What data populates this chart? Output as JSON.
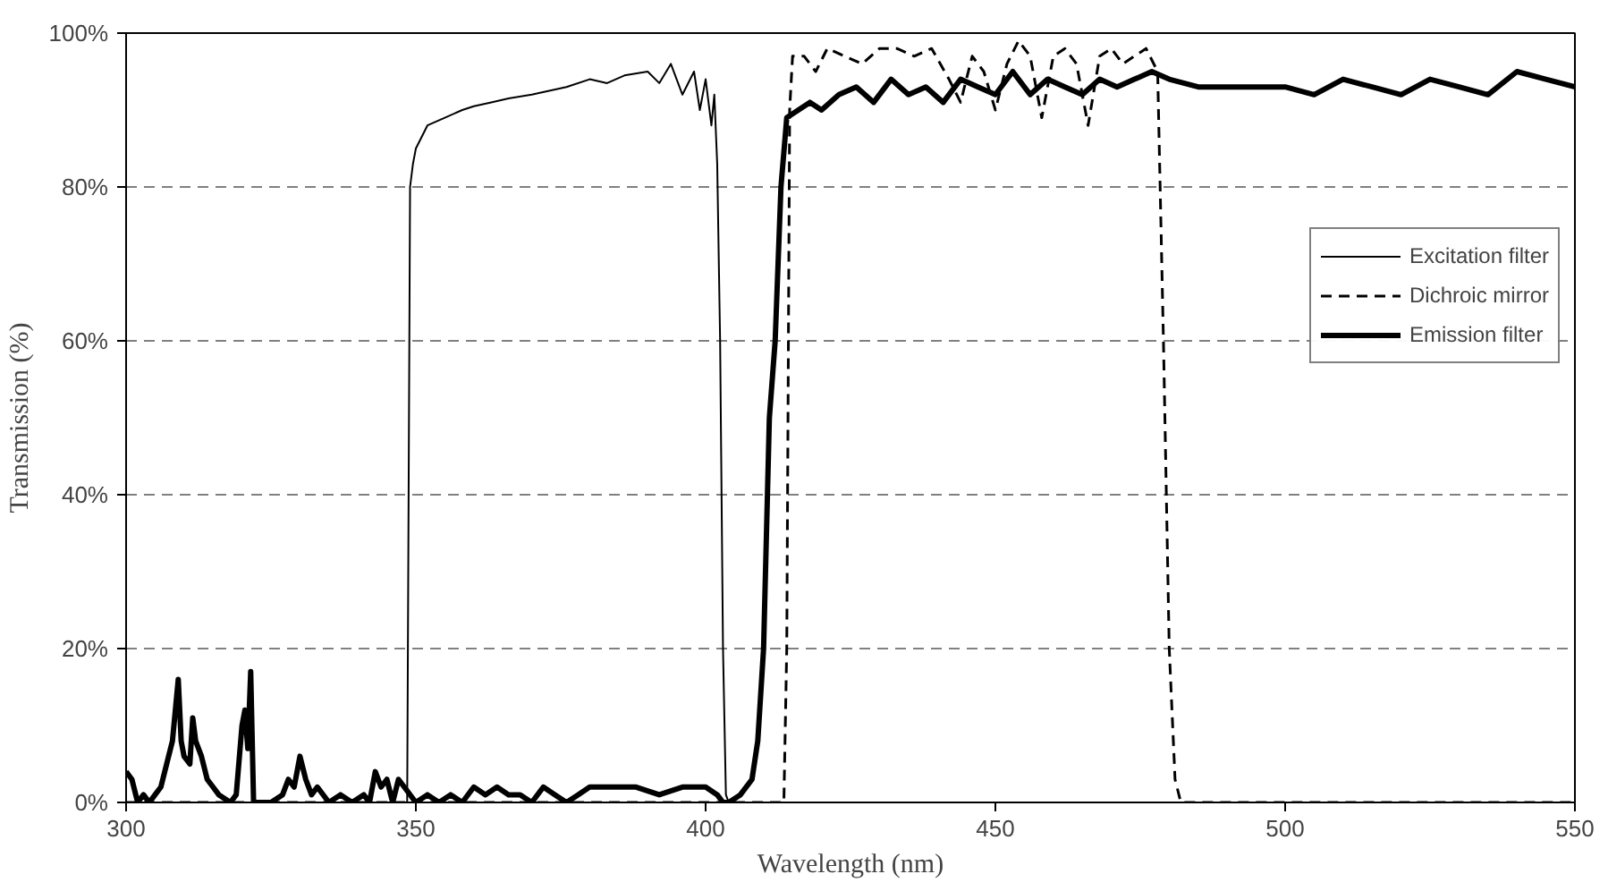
{
  "chart_data": {
    "type": "line",
    "xlabel": "Wavelength (nm)",
    "ylabel": "Transmission (%)",
    "xlim": [
      300,
      550
    ],
    "ylim": [
      0,
      100
    ],
    "xticks": [
      300,
      350,
      400,
      450,
      500,
      550
    ],
    "yticks": [
      {
        "value": 0,
        "label": "0%"
      },
      {
        "value": 20,
        "label": "20%"
      },
      {
        "value": 40,
        "label": "40%"
      },
      {
        "value": 60,
        "label": "60%"
      },
      {
        "value": 80,
        "label": "80%"
      },
      {
        "value": 100,
        "label": "100%"
      }
    ],
    "grid": "y",
    "legend": "right",
    "series": [
      {
        "name": "Excitation filter",
        "color": "#000000",
        "line_style": "solid",
        "x": [
          300,
          348.5,
          349,
          349.5,
          350,
          352,
          355,
          358,
          360,
          363,
          366,
          370,
          373,
          376,
          380,
          383,
          386,
          390,
          392,
          394,
          396,
          398,
          399,
          400,
          401,
          401.5,
          402,
          402.5,
          403,
          403.5,
          404,
          550
        ],
        "values": [
          0,
          0,
          80,
          83,
          85,
          88,
          89,
          90,
          90.5,
          91,
          91.5,
          92,
          92.5,
          93,
          94,
          93.5,
          94.5,
          95,
          93.5,
          96,
          92,
          95,
          90,
          94,
          88,
          92,
          83,
          60,
          20,
          1,
          0,
          0
        ]
      },
      {
        "name": "Dichroic mirror",
        "color": "#000000",
        "line_style": "dashed",
        "x": [
          300,
          413.5,
          414,
          414.5,
          415,
          417,
          419,
          421,
          424,
          427,
          430,
          433,
          436,
          439,
          442,
          444,
          446,
          448,
          450,
          452,
          454,
          456,
          458,
          460,
          462,
          464,
          466,
          468,
          470,
          472,
          474,
          476,
          478,
          479,
          480,
          481,
          482,
          550
        ],
        "values": [
          0,
          0,
          20,
          90,
          97,
          97,
          95,
          98,
          97,
          96,
          98,
          98,
          97,
          98,
          94,
          91,
          97,
          95,
          90,
          96,
          99,
          97,
          89,
          97,
          98,
          96,
          88,
          97,
          98,
          96,
          97,
          98,
          95,
          60,
          20,
          3,
          0,
          0
        ]
      },
      {
        "name": "Emission filter",
        "color": "#000000",
        "line_style": "solid",
        "x": [
          300,
          301,
          302,
          303,
          304,
          305,
          306,
          307,
          308,
          309,
          309.5,
          310,
          311,
          311.5,
          312,
          313,
          314,
          315,
          316,
          318,
          319,
          320,
          320.5,
          321,
          321.5,
          322,
          323,
          325,
          327,
          328,
          329,
          330,
          331,
          332,
          333,
          335,
          337,
          339,
          341,
          342,
          343,
          344,
          345,
          346,
          347,
          348,
          350,
          352,
          354,
          356,
          358,
          360,
          362,
          364,
          366,
          368,
          370,
          372,
          374,
          376,
          378,
          380,
          384,
          388,
          392,
          396,
          400,
          402,
          403,
          404,
          406,
          408,
          409,
          410,
          411,
          412,
          413,
          414,
          416,
          418,
          420,
          423,
          426,
          429,
          432,
          435,
          438,
          441,
          444,
          447,
          450,
          453,
          456,
          459,
          462,
          465,
          468,
          471,
          474,
          477,
          480,
          485,
          490,
          495,
          500,
          505,
          510,
          515,
          520,
          525,
          530,
          535,
          540,
          545,
          550
        ],
        "values": [
          4,
          3,
          0,
          1,
          0,
          1,
          2,
          5,
          8,
          16,
          8,
          6,
          5,
          11,
          8,
          6,
          3,
          2,
          1,
          0,
          1,
          10,
          12,
          7,
          17,
          0,
          0,
          0,
          1,
          3,
          2,
          6,
          3,
          1,
          2,
          0,
          1,
          0,
          1,
          0,
          4,
          2,
          3,
          0,
          3,
          2,
          0,
          1,
          0,
          1,
          0,
          2,
          1,
          2,
          1,
          1,
          0,
          2,
          1,
          0,
          1,
          2,
          2,
          2,
          1,
          2,
          2,
          1,
          0,
          0,
          1,
          3,
          8,
          20,
          50,
          60,
          80,
          89,
          90,
          91,
          90,
          92,
          93,
          91,
          94,
          92,
          93,
          91,
          94,
          93,
          92,
          95,
          92,
          94,
          93,
          92,
          94,
          93,
          94,
          95,
          94,
          93,
          93,
          93,
          93,
          92,
          94,
          93,
          92,
          94,
          93,
          92,
          95,
          94,
          93
        ]
      }
    ]
  }
}
